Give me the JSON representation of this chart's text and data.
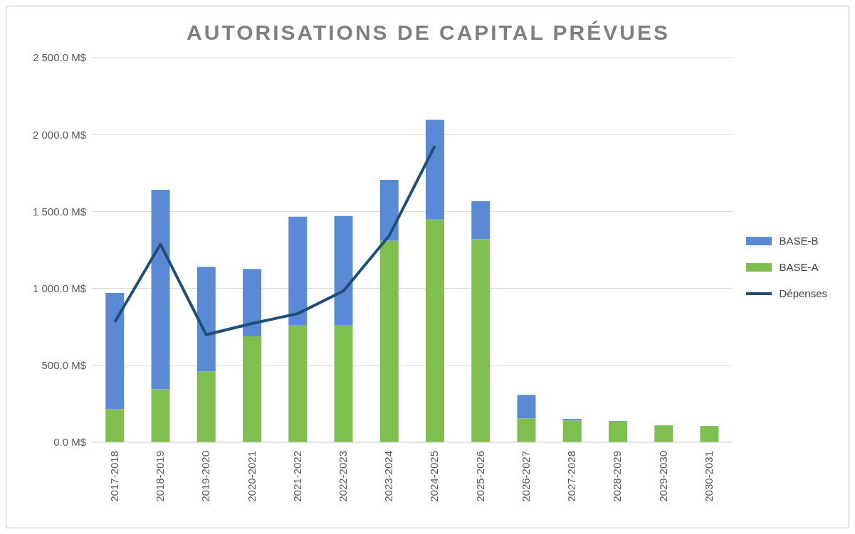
{
  "chart_data": {
    "type": "bar",
    "title": "AUTORISATIONS DE CAPITAL PRÉVUES",
    "categories": [
      "2017-2018",
      "2018-2019",
      "2019-2020",
      "2020-2021",
      "2021-2022",
      "2022-2023",
      "2023-2024",
      "2024-2025",
      "2025-2026",
      "2026-2027",
      "2027-2028",
      "2028-2029",
      "2029-2030",
      "2030-2031"
    ],
    "series": [
      {
        "name": "BASE-A",
        "color": "#7fbf4f",
        "values": [
          216,
          345,
          460,
          689,
          763,
          763,
          1310,
          1448,
          1319,
          156,
          142,
          133,
          110,
          106
        ]
      },
      {
        "name": "BASE-B",
        "color": "#5a8ad6",
        "values": [
          754,
          1296,
          680,
          437,
          703,
          708,
          395,
          648,
          248,
          152,
          10,
          5,
          0,
          0
        ]
      },
      {
        "name": "Dépenses",
        "type": "line",
        "color": "#1f4e79",
        "values": [
          781,
          1287,
          699,
          772,
          836,
          983,
          1342,
          1926,
          null,
          null,
          null,
          null,
          null,
          null
        ]
      }
    ],
    "stacked": true,
    "ylim": [
      0,
      2500
    ],
    "yticks": [
      {
        "value": 0,
        "label": "0.0 M$"
      },
      {
        "value": 500,
        "label": "500.0 M$"
      },
      {
        "value": 1000,
        "label": "1 000.0 M$"
      },
      {
        "value": 1500,
        "label": "1 500.0 M$"
      },
      {
        "value": 2000,
        "label": "2 000.0 M$"
      },
      {
        "value": 2500,
        "label": "2 500.0 M$"
      }
    ],
    "grid": "y",
    "legend": "right",
    "marker": "none",
    "line_style": "solid"
  }
}
